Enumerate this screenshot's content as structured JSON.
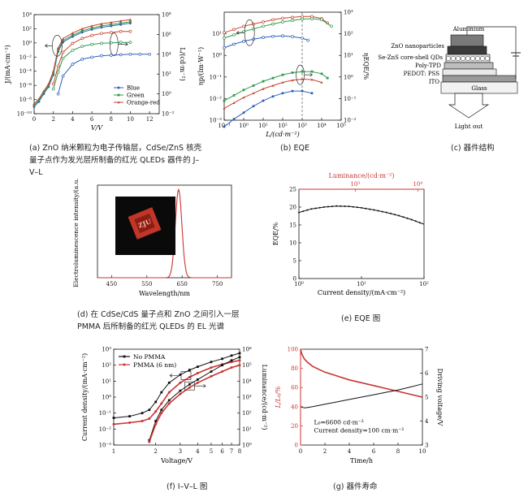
{
  "captions": {
    "a": "(a) ZnO 纳米颗粒为电子传输层，CdSe/ZnS 核壳量子点作为发光层所制备的红光 QLEDs 器件的 J–V–L",
    "b": "(b) EQE",
    "c": "(c) 器件结构",
    "d": "(d) 在 CdSe/CdS 量子点和 ZnO 之间引入一层 PMMA 后所制备的红光 QLEDs 的 EL 光谱",
    "e": "(e) EQE 图",
    "f": "(f) I–V–L 图",
    "g": "(g) 器件寿命"
  },
  "colors": {
    "blue": "#2f5fb8",
    "green": "#2e9a4e",
    "orange_red": "#c8462f",
    "red": "#cc3333",
    "black": "#111111",
    "gray": "#9a9a9a"
  },
  "device": {
    "layers": [
      "Aluminium",
      "ZnO nanoparticles",
      "CdSe-ZnS core-shell QDs",
      "Poly-TPD",
      "PEDOT: PSS",
      "ITO",
      "Glass"
    ],
    "light_out": "Light out"
  },
  "inset": {
    "text": "ZJU"
  },
  "chart_data": [
    {
      "id": "a",
      "type": "line",
      "xlabel": "V/V",
      "ylabel": "J/(mA·cm⁻²)",
      "y2label": "L/(cd·m⁻²)",
      "xlim": [
        0,
        13
      ],
      "ylim_log": [
        -10,
        4
      ],
      "y2lim_log": [
        -2,
        8
      ],
      "xticks": [
        0,
        2,
        4,
        6,
        8,
        10,
        12
      ],
      "yticks": [
        "10⁻¹⁰",
        "10⁻⁸",
        "10⁻⁶",
        "10⁻⁴",
        "10⁻²",
        "10⁰",
        "10²",
        "10⁴"
      ],
      "y2ticks": [
        "10⁻²",
        "10⁰",
        "10²",
        "10⁴",
        "10⁶",
        "10⁸"
      ],
      "legend": [
        "Blue",
        "Green",
        "Orange-red"
      ],
      "legend_position": "bottom-right",
      "series": [
        {
          "name": "Blue",
          "color": "blue",
          "axis": "J",
          "x": [
            0,
            0.5,
            1,
            1.5,
            2,
            2.5,
            3,
            4,
            5,
            6,
            7,
            8,
            9,
            10
          ],
          "logy": [
            -9,
            -8.3,
            -7.2,
            -6.2,
            -4.5,
            -1.2,
            0.1,
            0.9,
            1.5,
            1.9,
            2.2,
            2.4,
            2.6,
            2.8
          ]
        },
        {
          "name": "Green",
          "color": "green",
          "axis": "J",
          "x": [
            0,
            0.5,
            1,
            1.5,
            2,
            2.5,
            3,
            4,
            5,
            6,
            7,
            8,
            9,
            10
          ],
          "logy": [
            -8.8,
            -8.1,
            -7,
            -6,
            -4.3,
            -1,
            0.3,
            1.1,
            1.7,
            2.1,
            2.4,
            2.6,
            2.8,
            3
          ]
        },
        {
          "name": "Orange-red",
          "color": "orange_red",
          "axis": "J",
          "x": [
            0,
            0.5,
            1,
            1.5,
            2,
            2.5,
            3,
            4,
            5,
            6,
            7,
            8,
            9,
            10
          ],
          "logy": [
            -8.6,
            -7.9,
            -6.8,
            -5.8,
            -4,
            -0.7,
            0.6,
            1.4,
            2,
            2.4,
            2.7,
            2.9,
            3.1,
            3.3
          ]
        },
        {
          "name": "Blue",
          "color": "blue",
          "axis": "L",
          "x": [
            2.5,
            3,
            4,
            5,
            6,
            7,
            8,
            9,
            10,
            11,
            12
          ],
          "logy": [
            0,
            1.8,
            3,
            3.5,
            3.7,
            3.85,
            3.9,
            3.95,
            4,
            4,
            4
          ]
        },
        {
          "name": "Green",
          "color": "green",
          "axis": "L",
          "x": [
            2,
            2.5,
            3,
            4,
            5,
            6,
            7,
            8,
            9,
            10
          ],
          "logy": [
            0.5,
            2.2,
            3.6,
            4.4,
            4.8,
            5,
            5.1,
            5.15,
            5.2,
            5.2
          ]
        },
        {
          "name": "Orange-red",
          "color": "orange_red",
          "axis": "L",
          "x": [
            2,
            2.5,
            3,
            4,
            5,
            6,
            7,
            8,
            9,
            10
          ],
          "logy": [
            1,
            2.8,
            4.2,
            5.1,
            5.6,
            5.9,
            6.1,
            6.2,
            6.3,
            6.3
          ]
        }
      ]
    },
    {
      "id": "b",
      "type": "line",
      "xlabel": "L/(cd·m⁻²)",
      "ylabel": "ηp/(lm·W⁻¹)",
      "y2label": "ηEQE/%",
      "xlim_log": [
        -1,
        5
      ],
      "ylim_log": [
        -3,
        2
      ],
      "y2lim_log": [
        -2,
        3
      ],
      "xticks": [
        "10⁻¹",
        "10⁰",
        "10¹",
        "10²",
        "10³",
        "10⁴",
        "10⁵"
      ],
      "yticks": [
        "10⁻³",
        "10⁻²",
        "10⁻¹",
        "10⁰",
        "10¹"
      ],
      "y2ticks": [
        "10⁻²",
        "10⁻¹",
        "10⁰",
        "10¹",
        "10²",
        "10³"
      ],
      "marker_line_x_log": 3,
      "series": [
        {
          "name": "Orange-red ηEQE",
          "color": "orange_red",
          "group": "upper",
          "xlog": [
            -1,
            -0.5,
            0,
            0.5,
            1,
            1.5,
            2,
            2.5,
            3,
            3.5,
            4,
            4.3
          ],
          "ylog": [
            1.25,
            1.4,
            1.55,
            1.65,
            1.75,
            1.85,
            1.92,
            1.96,
            2,
            2,
            1.9,
            1.7
          ]
        },
        {
          "name": "Green ηEQE",
          "color": "green",
          "group": "upper",
          "xlog": [
            -1,
            -0.5,
            0,
            0.5,
            1,
            1.5,
            2,
            2.5,
            3,
            3.5,
            4,
            4.5
          ],
          "ylog": [
            1,
            1.15,
            1.3,
            1.42,
            1.55,
            1.65,
            1.75,
            1.82,
            1.88,
            1.9,
            1.85,
            1.55
          ]
        },
        {
          "name": "Blue ηEQE",
          "color": "blue",
          "group": "upper",
          "xlog": [
            -1,
            -0.5,
            0,
            0.5,
            1,
            1.5,
            2,
            2.5,
            3,
            3.3
          ],
          "ylog": [
            0.55,
            0.72,
            0.85,
            0.95,
            1.03,
            1.08,
            1.1,
            1.07,
            1,
            0.9
          ]
        },
        {
          "name": "Green ηp",
          "color": "green",
          "group": "lower",
          "xlog": [
            -1,
            -0.5,
            0,
            0.5,
            1,
            1.5,
            2,
            2.5,
            3,
            3.5,
            4,
            4.3
          ],
          "ylog": [
            -1.4,
            -1.15,
            -0.9,
            -0.7,
            -0.5,
            -0.35,
            -0.2,
            -0.1,
            -0.05,
            -0.05,
            -0.15,
            -0.35
          ]
        },
        {
          "name": "Orange-red ηp",
          "color": "orange_red",
          "group": "lower",
          "xlog": [
            -1,
            -0.5,
            0,
            0.5,
            1,
            1.5,
            2,
            2.5,
            3,
            3.5,
            4
          ],
          "ylog": [
            -1.75,
            -1.5,
            -1.25,
            -1.05,
            -0.85,
            -0.7,
            -0.55,
            -0.45,
            -0.4,
            -0.42,
            -0.55
          ]
        },
        {
          "name": "Blue ηp",
          "color": "blue",
          "group": "lower",
          "xlog": [
            -1,
            -0.5,
            0,
            0.5,
            1,
            1.5,
            2,
            2.5,
            3,
            3.5
          ],
          "ylog": [
            -2.6,
            -2.25,
            -1.95,
            -1.65,
            -1.4,
            -1.2,
            -1.05,
            -0.95,
            -0.95,
            -1.05
          ]
        }
      ]
    },
    {
      "id": "d",
      "type": "line",
      "xlabel": "Wavelength/nm",
      "ylabel": "Electroluminescence intensity/(a.u.)",
      "xlim": [
        410,
        790
      ],
      "xticks": [
        450,
        550,
        650,
        750
      ],
      "peak": 640,
      "fwhm": 22,
      "color": "red"
    },
    {
      "id": "e",
      "type": "line",
      "xlabel": "Current density/(mA·cm⁻²)",
      "ylabel": "EQE/%",
      "x2label": "Luminance/(cd·m⁻²)",
      "xlim_log": [
        0,
        2
      ],
      "ylim": [
        0,
        25
      ],
      "yticks": [
        0,
        5,
        10,
        15,
        20,
        25
      ],
      "xticks": [
        "10⁰",
        "10¹",
        "10²"
      ],
      "x2ticks": [
        {
          "label": "10³",
          "at_log_j": 0.9
        },
        {
          "label": "10⁴",
          "at_log_j": 1.9
        }
      ],
      "series": [
        {
          "name": "EQE",
          "color": "black",
          "xlog": [
            0,
            0.2,
            0.4,
            0.6,
            0.8,
            1.0,
            1.2,
            1.4,
            1.6,
            1.8,
            2.0
          ],
          "y": [
            18.5,
            19.5,
            20,
            20.3,
            20.2,
            19.8,
            19.2,
            18.5,
            17.6,
            16.5,
            15.2
          ]
        }
      ]
    },
    {
      "id": "f",
      "type": "line",
      "xlabel": "Voltage/V",
      "ylabel": "Current density/(mA·cm⁻²)",
      "y2label": "Luminance/(cd·m⁻²)",
      "xlim_log": [
        0,
        0.9031
      ],
      "xticks": [
        1,
        2,
        3,
        4,
        5,
        6,
        7,
        8
      ],
      "ylim_log": [
        -3,
        3
      ],
      "yticks": [
        "10⁻³",
        "10⁻²",
        "10⁻¹",
        "10⁰",
        "10¹",
        "10²",
        "10³"
      ],
      "y2lim_log": [
        0,
        6
      ],
      "y2ticks": [
        "10⁰",
        "10¹",
        "10²",
        "10³",
        "10⁴",
        "10⁵",
        "10⁶"
      ],
      "legend": [
        "No PMMA",
        "PMMA (6 nm)"
      ],
      "legend_position": "top-left",
      "series": [
        {
          "name": "No PMMA",
          "color": "black",
          "axis": "J",
          "x": [
            1,
            1.3,
            1.6,
            1.8,
            2,
            2.2,
            2.5,
            3,
            3.5,
            4,
            5,
            6,
            7,
            8
          ],
          "logy": [
            -1.3,
            -1.2,
            -1,
            -0.8,
            -0.3,
            0.3,
            0.9,
            1.4,
            1.7,
            1.9,
            2.2,
            2.4,
            2.6,
            2.75
          ]
        },
        {
          "name": "PMMA (6 nm)",
          "color": "red",
          "axis": "J",
          "x": [
            1,
            1.3,
            1.6,
            1.8,
            2,
            2.2,
            2.5,
            3,
            3.5,
            4,
            5,
            6,
            7,
            8
          ],
          "logy": [
            -1.7,
            -1.6,
            -1.5,
            -1.35,
            -0.9,
            -0.4,
            0.3,
            0.9,
            1.25,
            1.5,
            1.85,
            2.05,
            2.2,
            2.3
          ]
        },
        {
          "name": "No PMMA",
          "color": "black",
          "axis": "L",
          "x": [
            1.8,
            2,
            2.2,
            2.5,
            3,
            3.5,
            4,
            5,
            6,
            7,
            8
          ],
          "logy": [
            0.3,
            1.5,
            2.2,
            2.8,
            3.4,
            3.8,
            4.1,
            4.6,
            5,
            5.3,
            5.5
          ]
        },
        {
          "name": "PMMA (6 nm)",
          "color": "red",
          "axis": "L",
          "x": [
            1.8,
            2,
            2.2,
            2.5,
            3,
            3.5,
            4,
            5,
            6,
            7,
            8
          ],
          "logy": [
            0.2,
            1.3,
            2,
            2.6,
            3.2,
            3.6,
            3.9,
            4.3,
            4.6,
            4.85,
            5
          ]
        }
      ]
    },
    {
      "id": "g",
      "type": "line",
      "xlabel": "Time/h",
      "ylabel": "L/L₀/%",
      "y2label": "Driving voltage/V",
      "xlim": [
        0,
        10
      ],
      "xticks": [
        0,
        2,
        4,
        6,
        8,
        10
      ],
      "ylim": [
        0,
        100
      ],
      "yticks": [
        0,
        20,
        40,
        60,
        80,
        100
      ],
      "y2lim": [
        3,
        7
      ],
      "y2ticks": [
        3,
        4,
        5,
        6,
        7
      ],
      "annotations": [
        "L₀=6600 cd·m⁻²",
        "Current density=100 cm·m⁻²"
      ],
      "series": [
        {
          "name": "L/L0",
          "color": "red",
          "axis": "left",
          "x": [
            0,
            0.1,
            0.3,
            0.6,
            1,
            1.5,
            2,
            3,
            4,
            5,
            6,
            7,
            8,
            9,
            10
          ],
          "y": [
            100,
            95,
            90,
            86,
            82,
            79,
            76,
            72,
            68,
            65,
            62,
            59,
            56,
            53,
            50
          ]
        },
        {
          "name": "Driving voltage",
          "color": "black",
          "axis": "right",
          "x": [
            0,
            0.3,
            0.6,
            1,
            2,
            3,
            4,
            5,
            6,
            7,
            8,
            9,
            10
          ],
          "y": [
            4.6,
            4.55,
            4.57,
            4.6,
            4.7,
            4.8,
            4.9,
            5.0,
            5.1,
            5.2,
            5.3,
            5.42,
            5.55
          ]
        }
      ]
    }
  ]
}
